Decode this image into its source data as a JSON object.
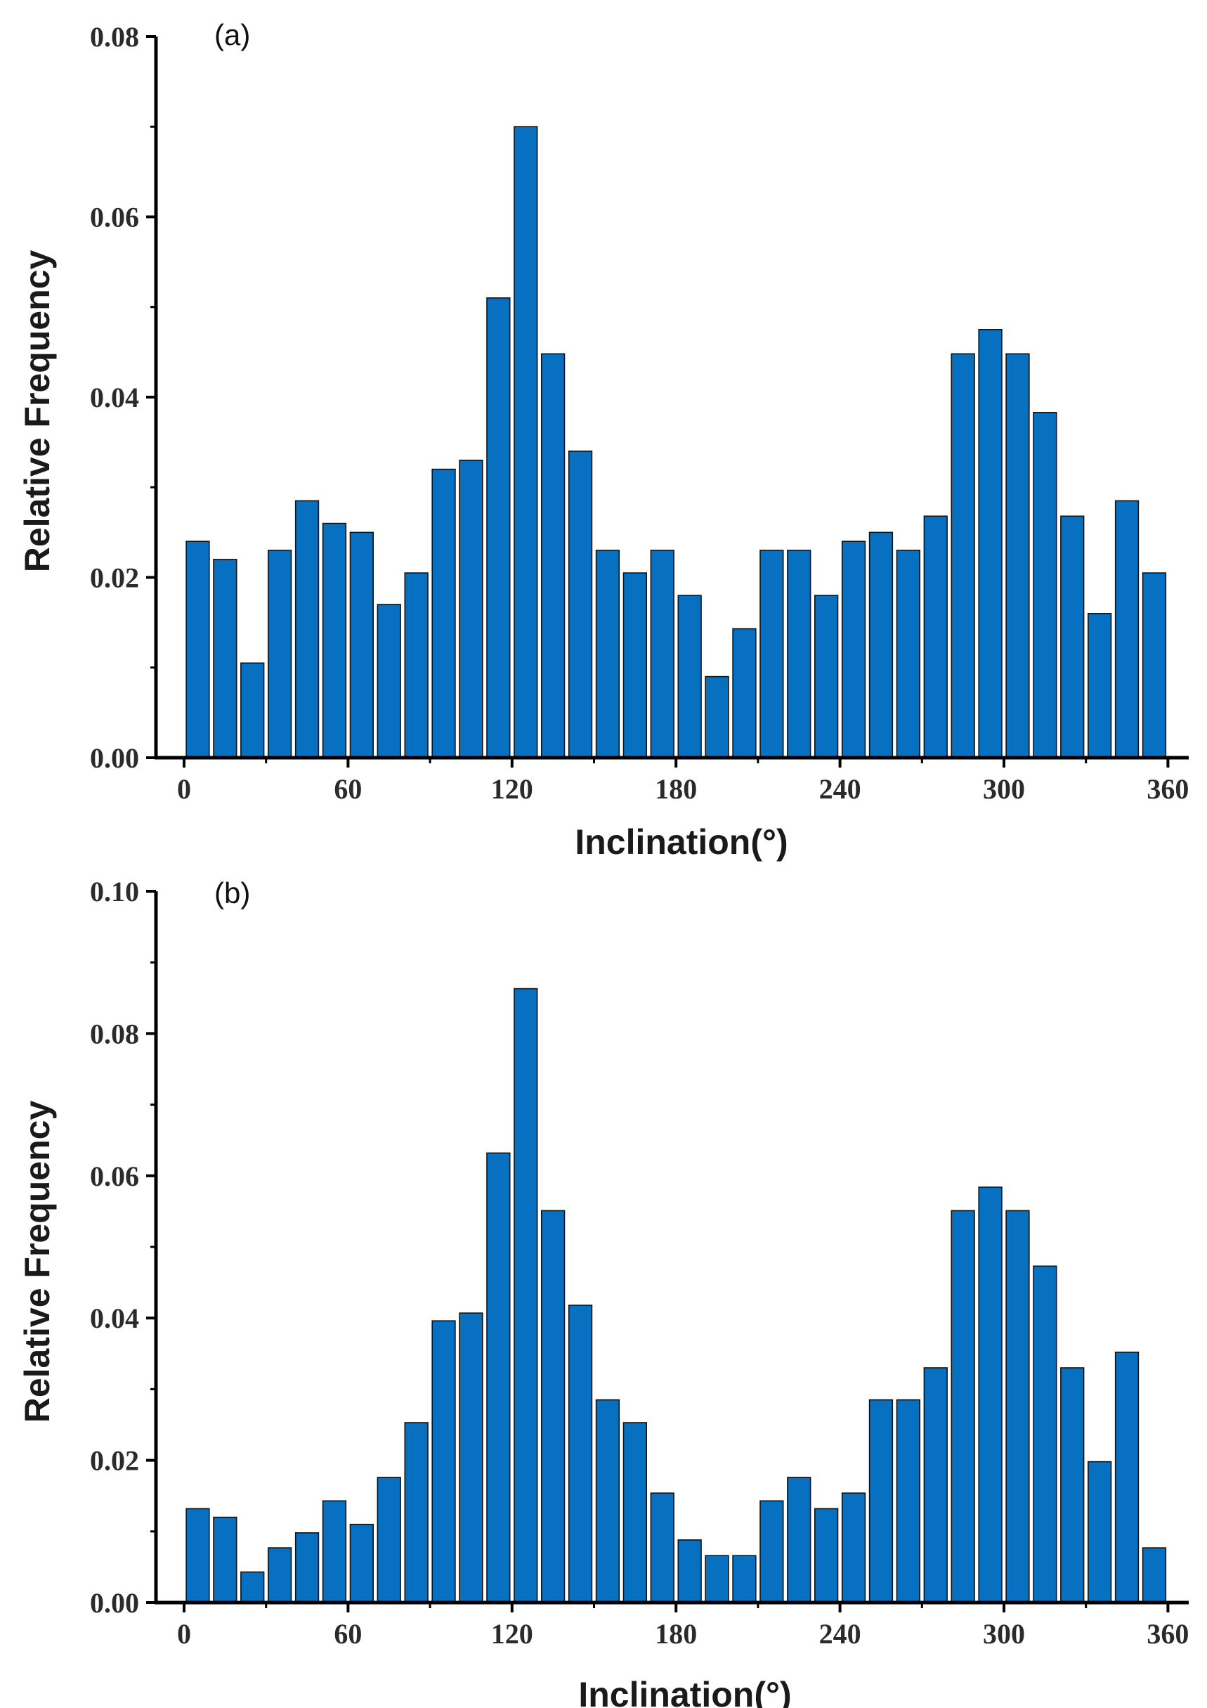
{
  "chart_data": [
    {
      "type": "bar",
      "panel_label": "(a)",
      "xlabel": "Inclination(°)",
      "ylabel": "Relative Frequency",
      "xlim": [
        0,
        360
      ],
      "ylim": [
        0,
        0.08
      ],
      "xticks": [
        "0",
        "60",
        "120",
        "180",
        "240",
        "300",
        "360"
      ],
      "yticks": [
        "0.00",
        "0.02",
        "0.04",
        "0.06",
        "0.08"
      ],
      "bin_width": 10,
      "bar_color": "#0870c0",
      "x": [
        5,
        15,
        25,
        35,
        45,
        55,
        65,
        75,
        85,
        95,
        105,
        115,
        125,
        135,
        145,
        155,
        165,
        175,
        185,
        195,
        205,
        215,
        225,
        235,
        245,
        255,
        265,
        275,
        285,
        295,
        305,
        315,
        325,
        335,
        345,
        355
      ],
      "values": [
        0.024,
        0.022,
        0.0105,
        0.023,
        0.0285,
        0.026,
        0.025,
        0.017,
        0.0205,
        0.032,
        0.033,
        0.051,
        0.07,
        0.0448,
        0.034,
        0.023,
        0.0205,
        0.023,
        0.018,
        0.009,
        0.0143,
        0.023,
        0.023,
        0.018,
        0.024,
        0.025,
        0.023,
        0.0268,
        0.0448,
        0.0475,
        0.0448,
        0.0383,
        0.0268,
        0.016,
        0.0285,
        0.0205
      ]
    },
    {
      "type": "bar",
      "panel_label": "(b)",
      "xlabel": "Inclination(°)",
      "ylabel": "Relative Frequency",
      "xlim": [
        0,
        360
      ],
      "ylim": [
        0,
        0.1
      ],
      "xticks": [
        "0",
        "60",
        "120",
        "180",
        "240",
        "300",
        "360"
      ],
      "yticks": [
        "0.00",
        "0.02",
        "0.04",
        "0.06",
        "0.08",
        "0.10"
      ],
      "bin_width": 10,
      "bar_color": "#0870c0",
      "x": [
        5,
        15,
        25,
        35,
        45,
        55,
        65,
        75,
        85,
        95,
        105,
        115,
        125,
        135,
        145,
        155,
        165,
        175,
        185,
        195,
        205,
        215,
        225,
        235,
        245,
        255,
        265,
        275,
        285,
        295,
        305,
        315,
        325,
        335,
        345,
        355
      ],
      "values": [
        0.0132,
        0.012,
        0.0043,
        0.0077,
        0.0098,
        0.0143,
        0.011,
        0.0176,
        0.0253,
        0.0396,
        0.0407,
        0.0632,
        0.0863,
        0.0551,
        0.0418,
        0.0285,
        0.0253,
        0.0154,
        0.0088,
        0.0066,
        0.0066,
        0.0143,
        0.0176,
        0.0132,
        0.0154,
        0.0285,
        0.0285,
        0.033,
        0.0551,
        0.0584,
        0.0551,
        0.0473,
        0.033,
        0.0198,
        0.0352,
        0.0077
      ]
    }
  ]
}
